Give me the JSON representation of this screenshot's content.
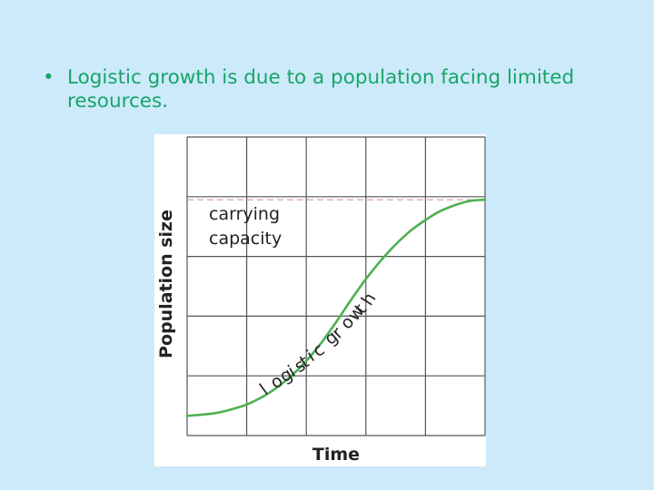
{
  "slide": {
    "bullet_symbol": "•",
    "bullet_text": "Logistic growth is due to a population facing limited resources."
  },
  "chart_data": {
    "type": "line",
    "title": "",
    "xlabel": "Time",
    "ylabel": "Population size",
    "grid": true,
    "grid_divisions": {
      "x": 5,
      "y": 5
    },
    "xlim": [
      0,
      5
    ],
    "ylim": [
      0,
      5
    ],
    "carrying_capacity": {
      "value": 3.95,
      "label_line1": "carrying",
      "label_line2": "capacity",
      "style": "dashed"
    },
    "series": [
      {
        "label": "logistic growth",
        "color": "#4cb050",
        "x": [
          0,
          0.25,
          0.5,
          0.75,
          1.0,
          1.25,
          1.5,
          1.75,
          2.0,
          2.25,
          2.5,
          2.75,
          3.0,
          3.25,
          3.5,
          3.75,
          4.0,
          4.25,
          4.5,
          4.75,
          5.0
        ],
        "y": [
          0.33,
          0.35,
          0.38,
          0.44,
          0.52,
          0.64,
          0.8,
          1.0,
          1.25,
          1.55,
          1.9,
          2.27,
          2.62,
          2.93,
          3.2,
          3.43,
          3.61,
          3.76,
          3.86,
          3.93,
          3.95
        ]
      }
    ]
  }
}
